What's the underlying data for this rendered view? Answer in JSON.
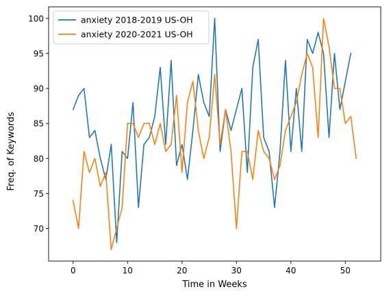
{
  "chart_data": {
    "type": "line",
    "title": "",
    "xlabel": "Time in Weeks",
    "ylabel": "Freq. of Keywords",
    "xlim": [
      -4.5,
      56.5
    ],
    "ylim": [
      65.35,
      101.65
    ],
    "xticks": [
      0,
      10,
      20,
      30,
      40,
      50
    ],
    "yticks": [
      70,
      75,
      80,
      85,
      90,
      95,
      100
    ],
    "grid": false,
    "legend_position": "top-left",
    "series": [
      {
        "name": "anxiety 2018-2019 US-OH",
        "color": "#1f77b4",
        "x": [
          0,
          1,
          2,
          3,
          4,
          5,
          6,
          7,
          8,
          9,
          10,
          11,
          12,
          13,
          14,
          15,
          16,
          17,
          18,
          19,
          20,
          21,
          22,
          23,
          24,
          25,
          26,
          27,
          28,
          29,
          30,
          31,
          32,
          33,
          34,
          35,
          36,
          37,
          38,
          39,
          40,
          41,
          42,
          43,
          44,
          45,
          46,
          47,
          48,
          49,
          50,
          51
        ],
        "values": [
          87,
          89,
          90,
          83,
          84,
          80,
          77,
          82,
          68,
          81,
          80,
          88,
          73,
          82,
          83,
          86,
          93,
          82,
          94,
          79,
          82,
          77,
          84,
          92,
          88,
          86,
          100,
          81,
          87,
          84,
          87,
          90,
          78,
          93,
          97,
          83,
          81,
          73,
          81,
          94,
          81,
          90,
          81,
          97,
          95,
          98,
          95,
          83,
          95,
          87,
          91,
          95
        ]
      },
      {
        "name": "anxiety 2020-2021 US-OH",
        "color": "#ff7f0e",
        "x": [
          0,
          1,
          2,
          3,
          4,
          5,
          6,
          7,
          8,
          9,
          10,
          11,
          12,
          13,
          14,
          15,
          16,
          17,
          18,
          19,
          20,
          21,
          22,
          23,
          24,
          25,
          26,
          27,
          28,
          29,
          30,
          31,
          32,
          33,
          34,
          35,
          36,
          37,
          38,
          39,
          40,
          41,
          42,
          43,
          44,
          45,
          46,
          47,
          48,
          49,
          50,
          51,
          52
        ],
        "values": [
          74,
          70,
          81,
          78,
          80,
          76,
          78,
          67,
          70,
          73,
          85,
          85,
          83,
          85,
          85,
          82,
          85,
          81,
          82,
          89,
          78,
          88,
          91,
          84,
          80,
          83,
          92,
          82,
          87,
          81,
          70,
          81,
          81,
          77,
          84,
          81,
          80,
          77,
          79,
          84,
          86,
          88,
          92,
          95,
          93,
          83,
          100,
          96,
          90,
          90,
          85,
          86,
          80
        ]
      }
    ]
  }
}
